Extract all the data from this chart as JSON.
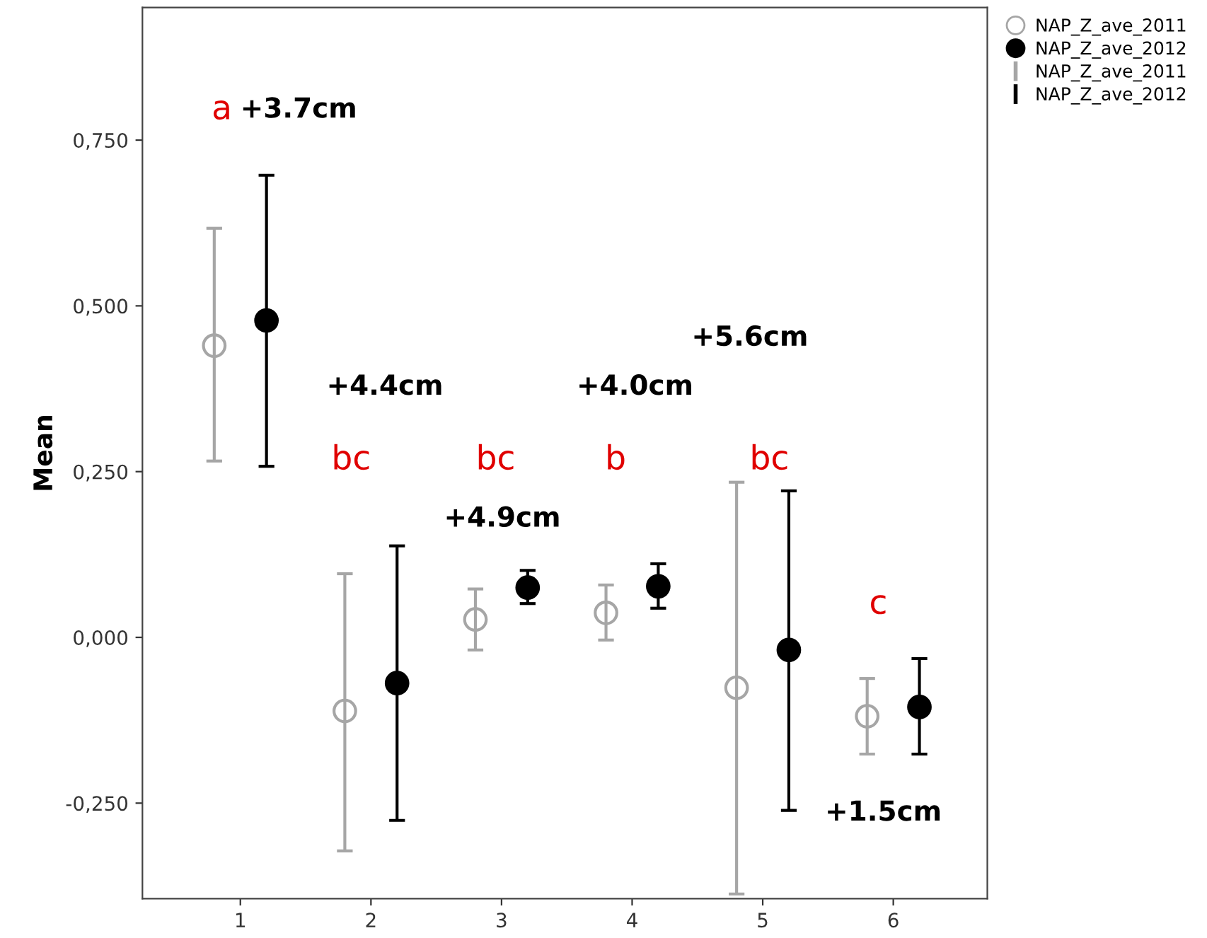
{
  "chart_data": {
    "type": "scatter",
    "ylabel": "Mean",
    "xlim": [
      0.25,
      6.72
    ],
    "xticks": [
      1,
      2,
      3,
      4,
      5,
      6
    ],
    "ylim": [
      -0.394,
      0.95
    ],
    "yticks": [
      {
        "value": -0.25,
        "label": "-0,250"
      },
      {
        "value": 0,
        "label": "0,000"
      },
      {
        "value": 0.25,
        "label": "0,250"
      },
      {
        "value": 0.5,
        "label": "0,500"
      },
      {
        "value": 0.75,
        "label": "0,750"
      }
    ],
    "grid": false,
    "legend": "top right",
    "series": [
      {
        "name": "NAP_Z_ave_2011",
        "color": "#a6a6a6",
        "marker": "open circle",
        "x": [
          0.8,
          1.8,
          2.8,
          3.8,
          4.8,
          5.8
        ],
        "values": [
          0.44,
          -0.111,
          0.027,
          0.037,
          -0.076,
          -0.119
        ],
        "errors": [
          [
            0.266,
            0.617
          ],
          [
            -0.322,
            0.096
          ],
          [
            -0.019,
            0.073
          ],
          [
            -0.004,
            0.079
          ],
          [
            -0.387,
            0.234
          ],
          [
            -0.176,
            -0.062
          ]
        ]
      },
      {
        "name": "NAP_Z_ave_2012",
        "color": "#000000",
        "marker": "circle",
        "x": [
          1.2,
          2.2,
          3.2,
          4.2,
          5.2,
          6.2
        ],
        "values": [
          0.478,
          -0.069,
          0.075,
          0.077,
          -0.019,
          -0.105
        ],
        "errors": [
          [
            0.258,
            0.697
          ],
          [
            -0.276,
            0.138
          ],
          [
            0.051,
            0.101
          ],
          [
            0.044,
            0.111
          ],
          [
            -0.261,
            0.221
          ],
          [
            -0.176,
            -0.032
          ]
        ]
      }
    ],
    "annotations": [
      "a",
      "+3.7cm",
      "+4.4cm",
      "bc",
      "bc",
      "+4.9cm",
      "b",
      "+4.0cm",
      "+5.6cm",
      "bc",
      "c",
      "+1.5cm"
    ]
  }
}
